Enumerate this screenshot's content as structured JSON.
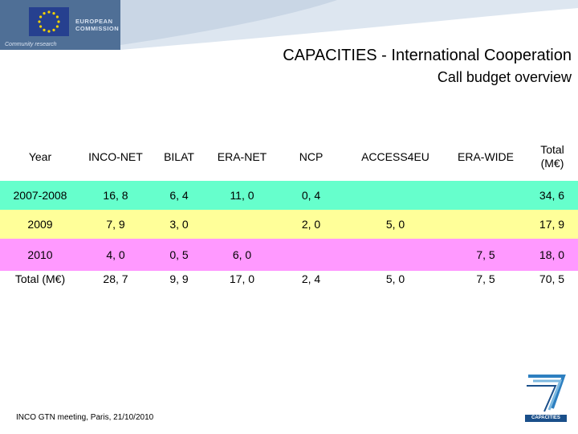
{
  "header": {
    "org_line1": "EUROPEAN",
    "org_line2": "COMMISSION",
    "org_sub": "Community research",
    "title": "CAPACITIES - International Cooperation",
    "subtitle": "Call budget overview"
  },
  "table": {
    "columns": [
      "Year",
      "INCO-NET",
      "BILAT",
      "ERA-NET",
      "NCP",
      "ACCESS4EU",
      "ERA-WIDE",
      "Total (M€)"
    ],
    "rows": [
      {
        "year": "2007-2008",
        "inco_net": "16, 8",
        "bilat": "6, 4",
        "era_net": "11, 0",
        "ncp": "0, 4",
        "access4eu": "",
        "era_wide": "",
        "total": "34, 6"
      },
      {
        "year": "2009",
        "inco_net": "7, 9",
        "bilat": "3, 0",
        "era_net": "",
        "ncp": "2, 0",
        "access4eu": "5, 0",
        "era_wide": "",
        "total": "17, 9"
      },
      {
        "year": "2010",
        "inco_net": "4, 0",
        "bilat": "0, 5",
        "era_net": "6, 0",
        "ncp": "",
        "access4eu": "",
        "era_wide": "7, 5",
        "total": "18, 0"
      },
      {
        "year": "Total (M€)",
        "inco_net": "28, 7",
        "bilat": "9, 9",
        "era_net": "17, 0",
        "ncp": "2, 4",
        "access4eu": "5, 0",
        "era_wide": "7, 5",
        "total": "70, 5"
      }
    ],
    "colors": {
      "header_row": "#ffffff",
      "row_2007_2008": "#66ffcc",
      "row_2009": "#ffff99",
      "row_2010": "#ff99ff",
      "row_total": "#ffffff"
    }
  },
  "footer": {
    "text": "INCO GTN meeting, Paris, 21/10/2010"
  },
  "logo": {
    "fp7_text": "CAPACITIES"
  }
}
